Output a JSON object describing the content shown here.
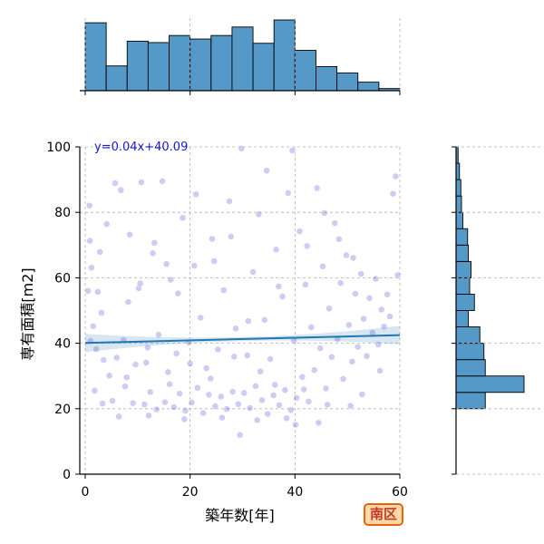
{
  "chart_data": {
    "type": "scatter",
    "title": "",
    "xlabel": "築年数[年]",
    "ylabel": "専有面積[m2]",
    "xlim": [
      0,
      60
    ],
    "ylim": [
      0,
      100
    ],
    "x_ticks": [
      "0",
      "20",
      "40",
      "60"
    ],
    "y_ticks": [
      "0",
      "20",
      "40",
      "60",
      "80",
      "100"
    ],
    "grid": true,
    "regression": {
      "label": "y=0.04x+40.09",
      "slope": 0.04,
      "intercept": 40.09,
      "color": "#1f77b4"
    },
    "point_color": "#1a1acc",
    "hist_color": "#5499c7",
    "x_histogram": {
      "bin_edges": [
        0,
        4,
        8,
        12,
        16,
        20,
        24,
        28,
        32,
        36,
        40,
        44,
        48,
        52,
        56,
        60
      ],
      "relative_heights": [
        0.96,
        0.35,
        0.7,
        0.68,
        0.78,
        0.73,
        0.78,
        0.9,
        0.67,
        1.0,
        0.57,
        0.34,
        0.25,
        0.12,
        0.03
      ]
    },
    "y_histogram": {
      "bin_edges": [
        0,
        5,
        10,
        15,
        20,
        25,
        30,
        35,
        40,
        45,
        50,
        55,
        60,
        65,
        70,
        75,
        80,
        85,
        90,
        95,
        100
      ],
      "relative_widths": [
        0,
        0,
        0,
        0,
        0.43,
        1.0,
        0.43,
        0.41,
        0.35,
        0.18,
        0.27,
        0.2,
        0.22,
        0.18,
        0.17,
        0.1,
        0.08,
        0.07,
        0.05,
        0.03
      ]
    },
    "points": [
      [
        1.8,
        25.5
      ],
      [
        2.1,
        38.2
      ],
      [
        3.5,
        34.9
      ],
      [
        0.8,
        82.1
      ],
      [
        1.2,
        63.1
      ],
      [
        2.4,
        55.7
      ],
      [
        3.1,
        49.3
      ],
      [
        4.6,
        30.1
      ],
      [
        5.2,
        22.4
      ],
      [
        6.0,
        35.6
      ],
      [
        6.8,
        86.8
      ],
      [
        7.3,
        41.0
      ],
      [
        7.9,
        29.6
      ],
      [
        8.5,
        73.2
      ],
      [
        9.1,
        21.7
      ],
      [
        9.6,
        33.5
      ],
      [
        10.2,
        56.8
      ],
      [
        10.7,
        89.2
      ],
      [
        11.3,
        21.3
      ],
      [
        11.9,
        38.7
      ],
      [
        12.4,
        25.1
      ],
      [
        12.9,
        67.5
      ],
      [
        13.6,
        19.8
      ],
      [
        14.0,
        42.6
      ],
      [
        14.7,
        89.5
      ],
      [
        15.2,
        22.0
      ],
      [
        15.8,
        31.2
      ],
      [
        16.3,
        59.4
      ],
      [
        16.9,
        20.5
      ],
      [
        17.4,
        36.9
      ],
      [
        18.0,
        24.6
      ],
      [
        18.6,
        78.3
      ],
      [
        19.1,
        19.4
      ],
      [
        19.7,
        40.3
      ],
      [
        20.3,
        21.9
      ],
      [
        20.8,
        63.7
      ],
      [
        21.4,
        26.4
      ],
      [
        22.0,
        47.8
      ],
      [
        22.5,
        18.7
      ],
      [
        23.1,
        32.4
      ],
      [
        23.6,
        24.3
      ],
      [
        24.2,
        71.9
      ],
      [
        24.8,
        20.8
      ],
      [
        25.3,
        38.1
      ],
      [
        25.9,
        23.7
      ],
      [
        26.4,
        56.2
      ],
      [
        27.0,
        19.9
      ],
      [
        27.5,
        83.4
      ],
      [
        28.1,
        25.2
      ],
      [
        28.7,
        44.5
      ],
      [
        29.2,
        21.4
      ],
      [
        29.8,
        99.5
      ],
      [
        30.3,
        24.8
      ],
      [
        30.9,
        36.3
      ],
      [
        31.4,
        20.2
      ],
      [
        32.0,
        61.8
      ],
      [
        32.5,
        26.9
      ],
      [
        33.1,
        79.4
      ],
      [
        33.7,
        22.6
      ],
      [
        34.2,
        47.1
      ],
      [
        34.8,
        18.4
      ],
      [
        35.3,
        35.2
      ],
      [
        35.9,
        24.1
      ],
      [
        36.4,
        68.6
      ],
      [
        37.0,
        21.1
      ],
      [
        37.6,
        54.3
      ],
      [
        38.1,
        25.7
      ],
      [
        38.7,
        85.9
      ],
      [
        39.2,
        19.6
      ],
      [
        39.8,
        40.8
      ],
      [
        40.3,
        23.3
      ],
      [
        40.9,
        74.2
      ],
      [
        41.4,
        29.7
      ],
      [
        42.0,
        57.9
      ],
      [
        42.6,
        22.2
      ],
      [
        43.1,
        44.9
      ],
      [
        43.7,
        31.8
      ],
      [
        44.2,
        87.4
      ],
      [
        44.8,
        38.5
      ],
      [
        45.3,
        63.5
      ],
      [
        45.9,
        26.2
      ],
      [
        46.5,
        50.6
      ],
      [
        47.0,
        35.8
      ],
      [
        47.6,
        76.7
      ],
      [
        48.1,
        41.3
      ],
      [
        48.7,
        58.4
      ],
      [
        49.2,
        29.1
      ],
      [
        49.8,
        66.9
      ],
      [
        50.3,
        45.6
      ],
      [
        50.9,
        34.4
      ],
      [
        51.5,
        55.1
      ],
      [
        52.0,
        38.9
      ],
      [
        52.6,
        61.2
      ],
      [
        53.1,
        47.5
      ],
      [
        53.7,
        36.1
      ],
      [
        54.2,
        53.8
      ],
      [
        54.8,
        43.2
      ],
      [
        55.4,
        59.7
      ],
      [
        55.9,
        39.6
      ],
      [
        56.5,
        50.3
      ],
      [
        57.0,
        45.1
      ],
      [
        57.6,
        54.9
      ],
      [
        58.1,
        48.2
      ],
      [
        58.7,
        85.7
      ],
      [
        59.2,
        91.0
      ],
      [
        59.6,
        60.8
      ],
      [
        0.5,
        56.0
      ],
      [
        0.9,
        71.3
      ],
      [
        1.5,
        45.2
      ],
      [
        2.8,
        67.9
      ],
      [
        4.1,
        76.4
      ],
      [
        5.7,
        88.9
      ],
      [
        8.2,
        52.6
      ],
      [
        10.5,
        58.3
      ],
      [
        13.2,
        70.7
      ],
      [
        15.5,
        64.2
      ],
      [
        17.7,
        55.2
      ],
      [
        21.1,
        85.5
      ],
      [
        24.6,
        65.1
      ],
      [
        27.8,
        72.6
      ],
      [
        31.1,
        46.8
      ],
      [
        34.6,
        92.7
      ],
      [
        36.9,
        57.4
      ],
      [
        39.5,
        98.9
      ],
      [
        42.3,
        69.7
      ],
      [
        45.6,
        79.8
      ],
      [
        48.4,
        71.8
      ],
      [
        51.1,
        66.1
      ],
      [
        6.4,
        17.6
      ],
      [
        12.1,
        17.9
      ],
      [
        18.9,
        16.8
      ],
      [
        26.1,
        17.3
      ],
      [
        32.8,
        16.5
      ],
      [
        38.4,
        17.1
      ],
      [
        44.5,
        15.7
      ],
      [
        1.0,
        40.7
      ],
      [
        3.3,
        21.6
      ],
      [
        7.6,
        26.8
      ],
      [
        11.6,
        34.1
      ],
      [
        16.1,
        27.5
      ],
      [
        20.0,
        33.8
      ],
      [
        23.9,
        29.2
      ],
      [
        28.4,
        35.9
      ],
      [
        33.4,
        31.4
      ],
      [
        36.2,
        27.3
      ],
      [
        41.7,
        25.9
      ],
      [
        46.2,
        21.2
      ],
      [
        50.6,
        20.9
      ],
      [
        29.5,
        12.0
      ],
      [
        40.1,
        15.1
      ],
      [
        52.8,
        24.4
      ],
      [
        56.2,
        31.6
      ]
    ]
  },
  "badge": {
    "text": "南区"
  }
}
